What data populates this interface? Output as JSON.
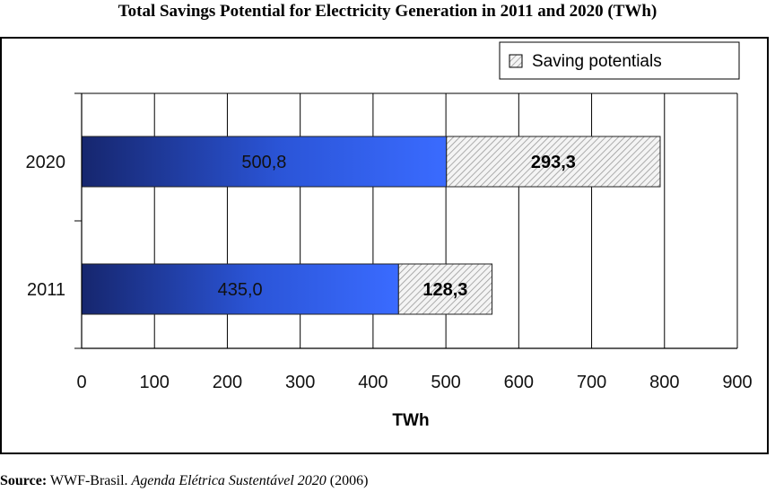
{
  "chart_data": {
    "type": "bar",
    "orientation": "horizontal",
    "stacked": true,
    "title": "Total Savings Potential for Electricity Generation in 2011 and 2020 (TWh)",
    "xlabel": "TWh",
    "ylabel": "",
    "xlim": [
      0,
      900
    ],
    "xticks": [
      "0",
      "100",
      "200",
      "300",
      "400",
      "500",
      "600",
      "700",
      "800",
      "900"
    ],
    "categories": [
      "2020",
      "2011"
    ],
    "series": [
      {
        "values": [
          500.8,
          435.0
        ],
        "labels": [
          "500,8",
          "435,0"
        ],
        "color": "#2f5fe8",
        "pattern": "gradient"
      },
      {
        "name": "Saving potentials",
        "values": [
          293.3,
          128.3
        ],
        "labels": [
          "293,3",
          "128,3"
        ],
        "color": "#dddddd",
        "pattern": "hatched"
      }
    ],
    "grid": true,
    "legend_position": "top-right"
  },
  "source": {
    "label": "Source:",
    "org": "WWF-Brasil.",
    "publication": "Agenda Elétrica Sustentável 2020",
    "year": "(2006)"
  }
}
